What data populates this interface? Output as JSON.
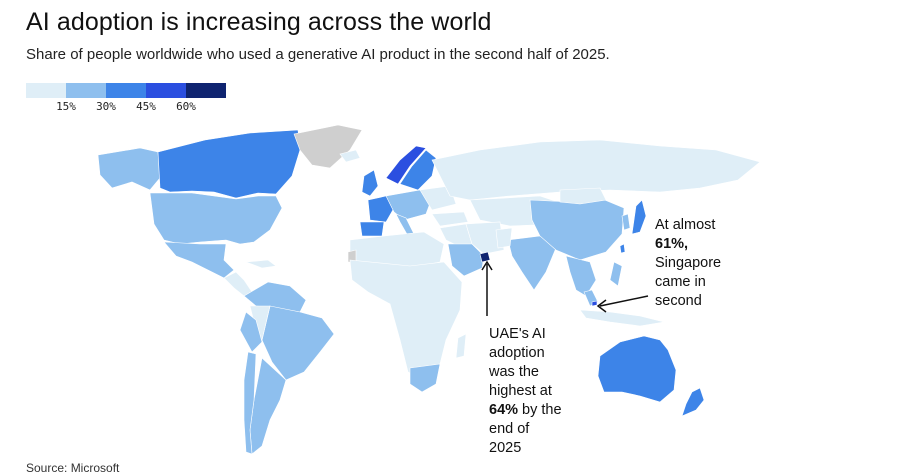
{
  "title": "AI adoption is increasing across the world",
  "subtitle": "Share of people worldwide who used a generative AI product in the second half of 2025.",
  "legend": {
    "ticks": [
      "15%",
      "30%",
      "45%",
      "60%"
    ],
    "colors": [
      "#dfeef7",
      "#8ebfee",
      "#3d84e8",
      "#2b4fe0",
      "#0f2470"
    ]
  },
  "colors": {
    "no_data": "#cfcfcf",
    "lowest": "#dfeef7",
    "low": "#8ebfee",
    "mid": "#3d84e8",
    "high": "#2b4fe0",
    "highest": "#0f2470"
  },
  "annotations": {
    "singapore": {
      "line1": "At almost",
      "value": "61%",
      "line2": "Singapore",
      "line3": "came in",
      "line4": "second"
    },
    "uae": {
      "line1": "UAE's AI",
      "line2": "adoption",
      "line3": "was the",
      "line4": "highest at",
      "value": "64%",
      "line5": " by the",
      "line6": "end of",
      "line7": "2025"
    }
  },
  "source": "Source: Microsoft"
}
